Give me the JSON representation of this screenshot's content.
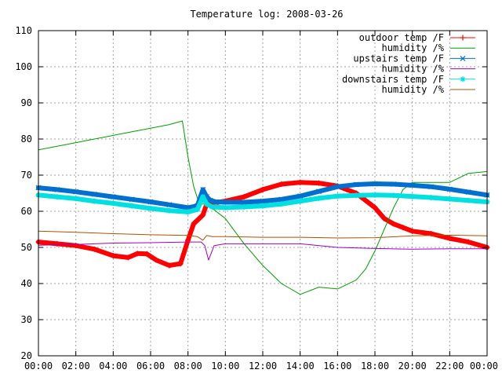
{
  "chart_data": {
    "type": "line",
    "title": "Temperature log: 2008-03-26",
    "xlabel": "",
    "ylabel": "",
    "x_ticks": [
      "00:00",
      "02:00",
      "04:00",
      "06:00",
      "08:00",
      "10:00",
      "12:00",
      "14:00",
      "16:00",
      "18:00",
      "20:00",
      "22:00",
      "00:00"
    ],
    "xlim": [
      0,
      24
    ],
    "ylim": [
      20,
      110
    ],
    "y_ticks": [
      20,
      30,
      40,
      50,
      60,
      70,
      80,
      90,
      100,
      110
    ],
    "grid": true,
    "legend_position": "top-right",
    "series": [
      {
        "name": "outdoor temp /F",
        "color": "#ff0000",
        "marker": "plus",
        "x": [
          0,
          1,
          2,
          3,
          4,
          4.8,
          5.3,
          5.8,
          6.3,
          7.0,
          7.6,
          8.0,
          8.3,
          8.6,
          8.8,
          9.0,
          9.3,
          9.6,
          10.0,
          11.0,
          12.0,
          13.0,
          14.0,
          15.0,
          16.0,
          16.5,
          17.0,
          17.5,
          18.0,
          18.5,
          19.0,
          19.5,
          20.0,
          21.0,
          22.0,
          23.0,
          24.0
        ],
        "values": [
          51.5,
          51,
          50.5,
          49.5,
          47.7,
          47.2,
          48.3,
          48.2,
          46.5,
          45,
          45.5,
          52,
          56.5,
          58,
          59,
          62,
          62.5,
          62.5,
          62.8,
          64,
          66,
          67.5,
          68,
          67.8,
          67,
          66,
          65,
          63,
          61,
          58,
          56.5,
          55.5,
          54.5,
          53.8,
          52.5,
          51.5,
          50
        ]
      },
      {
        "name": "humidity /%",
        "color": "#00a000",
        "marker": "none",
        "x": [
          0,
          1,
          2,
          3,
          4,
          5,
          6,
          7,
          7.7,
          8.0,
          8.3,
          8.6,
          9.0,
          10.0,
          11.0,
          12.0,
          13.0,
          14.0,
          15.0,
          16.0,
          17.0,
          17.5,
          18.0,
          18.5,
          19.0,
          19.5,
          20.0,
          21.0,
          22.0,
          23.0,
          24.0
        ],
        "values": [
          77,
          78,
          79,
          80,
          81,
          82,
          83,
          84,
          85,
          75,
          67,
          62,
          62,
          58,
          51,
          45,
          40,
          37,
          39,
          38.5,
          41,
          44,
          49,
          55,
          61,
          66,
          68,
          68,
          68,
          70.5,
          71
        ]
      },
      {
        "name": "upstairs temp /F",
        "color": "#0070d0",
        "marker": "x",
        "x": [
          0,
          1,
          2,
          3,
          4,
          5,
          6,
          7,
          8,
          8.5,
          8.8,
          9.0,
          9.2,
          9.5,
          10,
          11,
          12,
          13,
          14,
          15,
          16,
          17,
          18,
          19,
          20,
          21,
          22,
          23,
          24
        ],
        "values": [
          66.5,
          66,
          65.4,
          64.7,
          64,
          63.3,
          62.6,
          61.8,
          61,
          61.5,
          66,
          64,
          63,
          62.6,
          62.5,
          62.5,
          62.8,
          63.3,
          64.2,
          65.5,
          66.8,
          67.4,
          67.6,
          67.5,
          67.2,
          66.8,
          66.1,
          65.3,
          64.5
        ]
      },
      {
        "name": "humidity /%",
        "color": "#a000c0",
        "marker": "none",
        "x": [
          0,
          2,
          4,
          6,
          8,
          8.7,
          8.9,
          9.1,
          9.4,
          10,
          12,
          14,
          16,
          18,
          20,
          22,
          24
        ],
        "values": [
          50.6,
          50.8,
          51.2,
          51.3,
          51.5,
          51.5,
          50.5,
          46.5,
          50.5,
          51,
          51,
          51,
          50,
          49.7,
          49.5,
          49.6,
          49.6
        ]
      },
      {
        "name": "downstairs temp /F",
        "color": "#00e0e0",
        "marker": "star",
        "x": [
          0,
          1,
          2,
          3,
          4,
          5,
          6,
          7,
          8,
          8.5,
          8.8,
          9.0,
          9.3,
          10,
          11,
          12,
          13,
          14,
          15,
          16,
          17,
          18,
          19,
          20,
          21,
          22,
          23,
          24
        ],
        "values": [
          64.5,
          64,
          63.5,
          62.8,
          62.2,
          61.5,
          60.8,
          60.2,
          59.8,
          60.5,
          64,
          62,
          61.2,
          61,
          61.2,
          61.5,
          62,
          62.8,
          63.6,
          64.2,
          64.4,
          64.5,
          64.4,
          64.1,
          63.8,
          63.4,
          63,
          62.6
        ]
      },
      {
        "name": "humidity /%",
        "color": "#b05000",
        "marker": "none",
        "x": [
          0,
          2,
          4,
          6,
          8,
          8.5,
          8.8,
          9.0,
          9.3,
          10,
          12,
          14,
          16,
          18,
          20,
          22,
          24
        ],
        "values": [
          54.5,
          54.2,
          53.8,
          53.5,
          53.3,
          53,
          52,
          53.3,
          53,
          53,
          52.8,
          52.8,
          52.6,
          52.7,
          53.2,
          53.4,
          53.2
        ]
      }
    ]
  }
}
